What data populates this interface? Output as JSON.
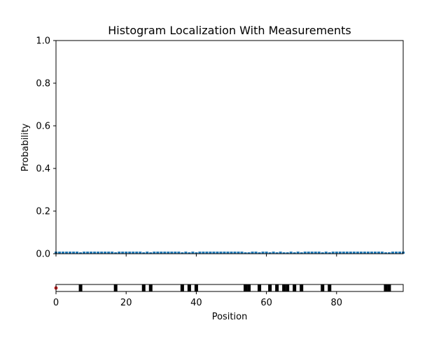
{
  "chart_data": [
    {
      "type": "bar",
      "title": "Histogram Localization With Measurements",
      "xlabel": "",
      "ylabel": "Probability",
      "xlim": [
        0,
        99
      ],
      "ylim": [
        0,
        1.0
      ],
      "y_ticks": [
        "0.0",
        "0.2",
        "0.4",
        "0.6",
        "0.8",
        "1.0"
      ],
      "y_tick_values": [
        0,
        0.2,
        0.4,
        0.6,
        0.8,
        1.0
      ],
      "x_ticks": [
        0,
        20,
        40,
        60,
        80
      ],
      "x_ticklabels_visible": false,
      "bar_color": "#1f77b4",
      "values": [
        0.01,
        0.01,
        0.01,
        0.01,
        0.01,
        0.01,
        0.01,
        0.007,
        0.01,
        0.01,
        0.01,
        0.01,
        0.01,
        0.01,
        0.01,
        0.01,
        0.01,
        0.007,
        0.01,
        0.01,
        0.01,
        0.01,
        0.01,
        0.01,
        0.01,
        0.007,
        0.01,
        0.007,
        0.01,
        0.01,
        0.01,
        0.01,
        0.01,
        0.01,
        0.01,
        0.01,
        0.007,
        0.01,
        0.007,
        0.01,
        0.007,
        0.01,
        0.01,
        0.01,
        0.01,
        0.01,
        0.01,
        0.01,
        0.01,
        0.01,
        0.01,
        0.01,
        0.01,
        0.01,
        0.007,
        0.007,
        0.01,
        0.01,
        0.007,
        0.01,
        0.01,
        0.007,
        0.01,
        0.007,
        0.01,
        0.007,
        0.007,
        0.01,
        0.007,
        0.01,
        0.007,
        0.01,
        0.01,
        0.01,
        0.01,
        0.01,
        0.007,
        0.01,
        0.007,
        0.01,
        0.01,
        0.01,
        0.01,
        0.01,
        0.01,
        0.01,
        0.01,
        0.01,
        0.01,
        0.01,
        0.01,
        0.01,
        0.01,
        0.01,
        0.007,
        0.007,
        0.01,
        0.01,
        0.01,
        0.01
      ]
    },
    {
      "type": "heatmap",
      "xlabel": "Position",
      "xlim": [
        0,
        99
      ],
      "x_ticks": [
        "0",
        "20",
        "40",
        "60",
        "80"
      ],
      "x_tick_values": [
        0,
        20,
        40,
        60,
        80
      ],
      "cell_colors": {
        "dark": "#000000",
        "light": "#ffffff"
      },
      "dark_cells": [
        7,
        17,
        25,
        27,
        36,
        38,
        40,
        54,
        55,
        58,
        61,
        63,
        65,
        66,
        68,
        70,
        76,
        78,
        94,
        95
      ],
      "robot_position": 0,
      "robot_color": "#d62728"
    }
  ]
}
